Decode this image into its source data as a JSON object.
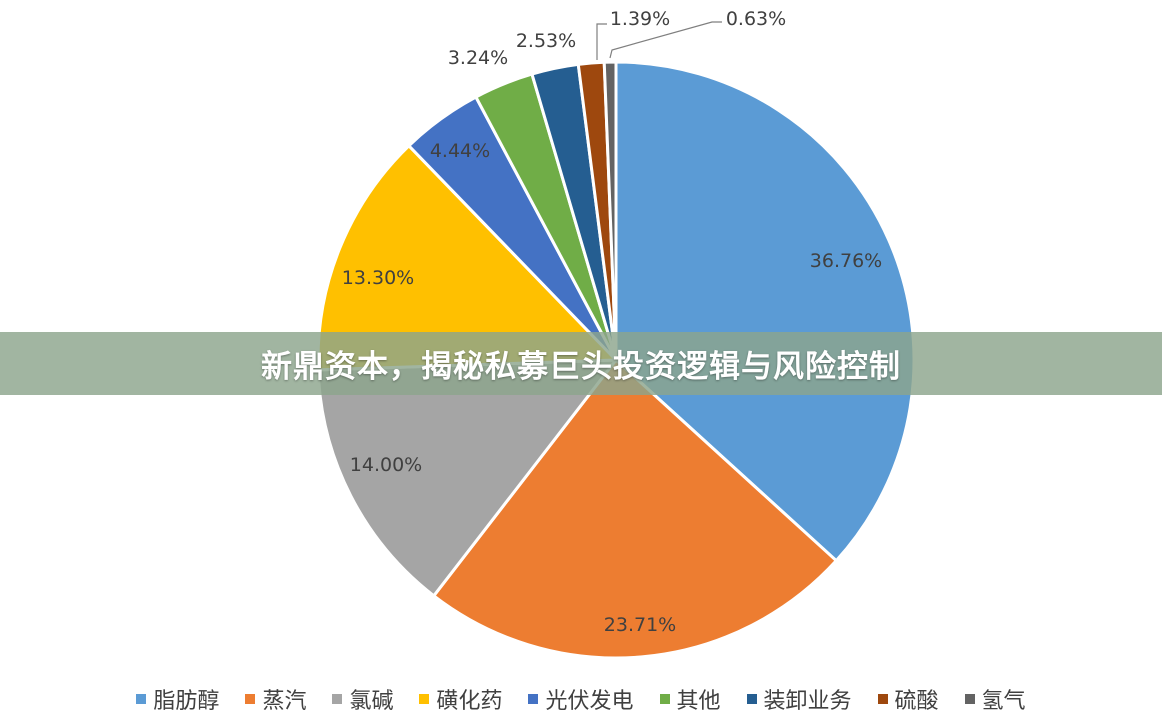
{
  "banner": {
    "title": "新鼎资本，揭秘私募巨头投资逻辑与风险控制"
  },
  "chart_data": {
    "type": "pie",
    "title": "",
    "legend_position": "bottom",
    "start_angle_deg": 0,
    "direction": "clockwise",
    "slices": [
      {
        "name": "脂肪醇",
        "value": 36.76,
        "label": "36.76%",
        "color": "#5b9bd5"
      },
      {
        "name": "蒸汽",
        "value": 23.71,
        "label": "23.71%",
        "color": "#ed7d31"
      },
      {
        "name": "氯碱",
        "value": 14.0,
        "label": "14.00%",
        "color": "#a5a5a5"
      },
      {
        "name": "磺化药",
        "value": 13.3,
        "label": "13.30%",
        "color": "#ffc000"
      },
      {
        "name": "光伏发电",
        "value": 4.44,
        "label": "4.44%",
        "color": "#4472c4"
      },
      {
        "name": "其他",
        "value": 3.24,
        "label": "3.24%",
        "color": "#70ad47"
      },
      {
        "name": "装卸业务",
        "value": 2.53,
        "label": "2.53%",
        "color": "#255e91"
      },
      {
        "name": "硫酸",
        "value": 1.39,
        "label": "1.39%",
        "color": "#9e480e"
      },
      {
        "name": "氢气",
        "value": 0.63,
        "label": "0.63%",
        "color": "#636363"
      }
    ]
  }
}
